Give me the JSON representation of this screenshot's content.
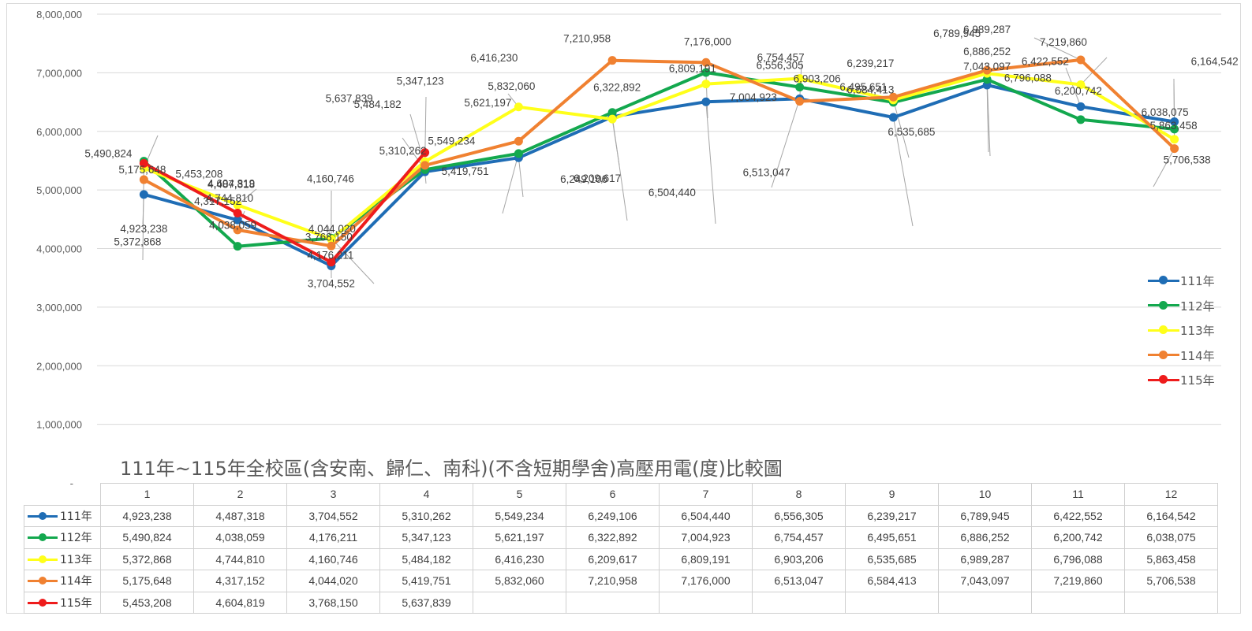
{
  "chart_data": {
    "type": "line",
    "title": "111年~115年全校區(含安南、歸仁、南科)(不含短期學舍)高壓用電(度)比較圖",
    "categories": [
      "1",
      "2",
      "3",
      "4",
      "5",
      "6",
      "7",
      "8",
      "9",
      "10",
      "11",
      "12"
    ],
    "ylim": [
      0,
      8000000
    ],
    "yticks": [
      "-",
      "1,000,000",
      "2,000,000",
      "3,000,000",
      "4,000,000",
      "5,000,000",
      "6,000,000",
      "7,000,000",
      "8,000,000"
    ],
    "grid": true,
    "legend_position": "right",
    "series": [
      {
        "name": "111年",
        "color": "#1f6db5",
        "values": [
          4923238,
          4487318,
          3704552,
          5310262,
          5549234,
          6249106,
          6504440,
          6556305,
          6239217,
          6789945,
          6422552,
          6164542
        ],
        "labels": [
          "4,923,238",
          "4,487,318",
          "3,704,552",
          "5,310,262",
          "5,549,234",
          "6,249,106",
          "6,504,440",
          "6,556,305",
          "6,239,217",
          "6,789,945",
          "6,422,552",
          "6,164,542"
        ]
      },
      {
        "name": "112年",
        "color": "#13a84e",
        "values": [
          5490824,
          4038059,
          4176211,
          5347123,
          5621197,
          6322892,
          7004923,
          6754457,
          6495651,
          6886252,
          6200742,
          6038075
        ],
        "labels": [
          "5,490,824",
          "4,038,059",
          "4,176,211",
          "5,347,123",
          "5,621,197",
          "6,322,892",
          "7,004,923",
          "6,754,457",
          "6,495,651",
          "6,886,252",
          "6,200,742",
          "6,038,075"
        ]
      },
      {
        "name": "113年",
        "color": "#ffff1a",
        "values": [
          5372868,
          4744810,
          4160746,
          5484182,
          6416230,
          6209617,
          6809191,
          6903206,
          6535685,
          6989287,
          6796088,
          5863458
        ],
        "labels": [
          "5,372,868",
          "4,744,810",
          "4,160,746",
          "5,484,182",
          "6,416,230",
          "6,209,617",
          "6,809,191",
          "6,903,206",
          "6,535,685",
          "6,989,287",
          "6,796,088",
          "5,863,458"
        ]
      },
      {
        "name": "114年",
        "color": "#f08131",
        "values": [
          5175648,
          4317152,
          4044020,
          5419751,
          5832060,
          7210958,
          7176000,
          6513047,
          6584413,
          7043097,
          7219860,
          5706538
        ],
        "labels": [
          "5,175,648",
          "4,317,152",
          "4,044,020",
          "5,419,751",
          "5,832,060",
          "7,210,958",
          "7,176,000",
          "6,513,047",
          "6,584,413",
          "7,043,097",
          "7,219,860",
          "5,706,538"
        ]
      },
      {
        "name": "115年",
        "color": "#ee1c1c",
        "values": [
          5453208,
          4604819,
          3768150,
          5637839,
          null,
          null,
          null,
          null,
          null,
          null,
          null,
          null
        ],
        "labels": [
          "5,453,208",
          "4,604,819",
          "3,768,150",
          "5,637,839",
          "",
          "",
          "",
          "",
          "",
          "",
          "",
          ""
        ]
      }
    ]
  }
}
